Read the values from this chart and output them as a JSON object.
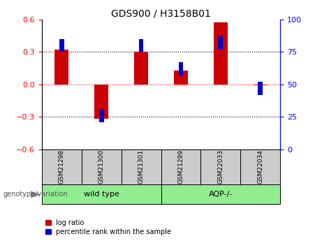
{
  "title": "GDS900 / H3158B01",
  "samples": [
    "GSM21298",
    "GSM21300",
    "GSM21301",
    "GSM21299",
    "GSM22033",
    "GSM22034"
  ],
  "log_ratio": [
    0.32,
    -0.32,
    0.3,
    0.13,
    0.57,
    -0.01
  ],
  "percentile_rank": [
    80,
    26,
    80,
    62,
    82,
    47
  ],
  "groups": [
    {
      "label": "wild type",
      "indices": [
        0,
        1,
        2
      ],
      "color": "#90ee90"
    },
    {
      "label": "AQP-/-",
      "indices": [
        3,
        4,
        5
      ],
      "color": "#90ee90"
    }
  ],
  "bar_color_red": "#cc0000",
  "bar_color_blue": "#0000cc",
  "ylim_left": [
    -0.6,
    0.6
  ],
  "ylim_right": [
    0,
    100
  ],
  "yticks_left": [
    -0.6,
    -0.3,
    0.0,
    0.3,
    0.6
  ],
  "yticks_right": [
    0,
    25,
    50,
    75,
    100
  ],
  "hlines": [
    -0.3,
    0.0,
    0.3
  ],
  "hline_colors": [
    "black",
    "red",
    "black"
  ],
  "hline_styles": [
    "dotted",
    "dotted",
    "dotted"
  ],
  "red_bar_width": 0.35,
  "blue_bar_width": 0.12,
  "bg_color": "#ffffff",
  "sample_box_color": "#cccccc",
  "group_label_text": "genotype/variation",
  "legend_entries": [
    "log ratio",
    "percentile rank within the sample"
  ]
}
